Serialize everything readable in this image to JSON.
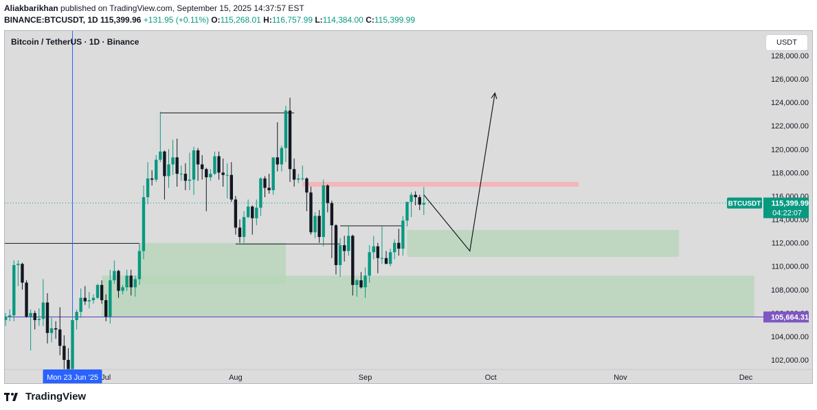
{
  "header": {
    "author": "Aliakbarikhan",
    "published_text": "published on TradingView.com, September 15, 2025 14:37:57 EST",
    "symbol": "BINANCE:BTCUSDT, 1D",
    "last": "115,399.96",
    "change": "+131.95 (+0.11%)",
    "o_label": "O:",
    "o_value": "115,268.01",
    "h_label": "H:",
    "h_value": "116,757.99",
    "l_label": "L:",
    "l_value": "114,384.00",
    "c_label": "C:",
    "c_value": "115,399.99"
  },
  "chart_title": "Bitcoin / TetherUS · 1D · Binance",
  "currency": "USDT",
  "footer": {
    "brand": "TradingView"
  },
  "colors": {
    "up": "#089981",
    "down": "#131722",
    "background": "#dcdcdc",
    "zone": "#b5d6b7",
    "resistance": "#f4b6b8",
    "crosshair": "#2962ff",
    "level_line": "#5b3cc4",
    "level_label": "#7e57c2"
  },
  "chart_data": {
    "type": "candlestick",
    "symbol_label": "BTCUSDT",
    "last_price": 115399.99,
    "last_price_label": "115,399.99",
    "countdown": "04:22:07",
    "level_price": 105664.31,
    "level_label": "105,664.31",
    "crosshair_label": "Mon 23 Jun '25",
    "y_ticks": [
      102000,
      104000,
      106000,
      108000,
      110000,
      112000,
      114000,
      116000,
      118000,
      120000,
      122000,
      124000,
      126000,
      128000
    ],
    "y_tick_labels": [
      "102,000.00",
      "104,000.00",
      "106,000.00",
      "108,000.00",
      "110,000.00",
      "112,000.00",
      "114,000.00",
      "116,000.00",
      "118,000.00",
      "120,000.00",
      "122,000.00",
      "124,000.00",
      "126,000.00",
      "128,000.00"
    ],
    "x_labels": [
      {
        "date": "2025-07-01",
        "label": "Jul"
      },
      {
        "date": "2025-08-01",
        "label": "Aug"
      },
      {
        "date": "2025-09-01",
        "label": "Sep"
      },
      {
        "date": "2025-10-01",
        "label": "Oct"
      },
      {
        "date": "2025-11-01",
        "label": "Nov"
      },
      {
        "date": "2025-12-01",
        "label": "Dec"
      }
    ],
    "candles": [
      [
        "2025-06-06",
        104300,
        105500,
        103700,
        105400
      ],
      [
        "2025-06-07",
        105400,
        106000,
        104900,
        105700
      ],
      [
        "2025-06-08",
        105700,
        106300,
        105300,
        105800
      ],
      [
        "2025-06-09",
        105800,
        110500,
        105300,
        110100
      ],
      [
        "2025-06-10",
        110100,
        110500,
        108300,
        110200
      ],
      [
        "2025-06-11",
        110200,
        110300,
        108000,
        108600
      ],
      [
        "2025-06-12",
        108600,
        108800,
        105600,
        105700
      ],
      [
        "2025-06-13",
        105700,
        106300,
        102800,
        106000
      ],
      [
        "2025-06-14",
        106000,
        106200,
        104600,
        105400
      ],
      [
        "2025-06-15",
        105400,
        106400,
        104900,
        105500
      ],
      [
        "2025-06-16",
        105500,
        108900,
        104900,
        106900
      ],
      [
        "2025-06-17",
        106900,
        107700,
        103400,
        104300
      ],
      [
        "2025-06-18",
        104300,
        105600,
        103500,
        104700
      ],
      [
        "2025-06-19",
        104700,
        105300,
        103800,
        104600
      ],
      [
        "2025-06-20",
        104600,
        106500,
        102400,
        103200
      ],
      [
        "2025-06-21",
        103200,
        104100,
        100800,
        102000
      ],
      [
        "2025-06-22",
        102000,
        103000,
        98200,
        100900
      ],
      [
        "2025-06-23",
        100900,
        106000,
        99700,
        105400
      ],
      [
        "2025-06-24",
        105400,
        106300,
        104600,
        106100
      ],
      [
        "2025-06-25",
        106100,
        108100,
        105600,
        107300
      ],
      [
        "2025-06-26",
        107300,
        108300,
        106700,
        107000
      ],
      [
        "2025-06-27",
        107000,
        107800,
        106400,
        107100
      ],
      [
        "2025-06-28",
        107100,
        107600,
        106800,
        107300
      ],
      [
        "2025-06-29",
        107300,
        108500,
        107200,
        108400
      ],
      [
        "2025-06-30",
        108400,
        108800,
        106800,
        107100
      ],
      [
        "2025-07-01",
        107100,
        107600,
        105300,
        105700
      ],
      [
        "2025-07-02",
        105700,
        109700,
        105100,
        108800
      ],
      [
        "2025-07-03",
        108800,
        110500,
        108500,
        109600
      ],
      [
        "2025-07-04",
        109600,
        109700,
        107300,
        107900
      ],
      [
        "2025-07-05",
        107900,
        108400,
        107600,
        108200
      ],
      [
        "2025-07-06",
        108200,
        109700,
        107900,
        109200
      ],
      [
        "2025-07-07",
        109200,
        109700,
        107500,
        108200
      ],
      [
        "2025-07-08",
        108200,
        109200,
        107400,
        108900
      ],
      [
        "2025-07-09",
        108900,
        111900,
        108400,
        111300
      ],
      [
        "2025-07-10",
        111300,
        116900,
        110600,
        115900
      ],
      [
        "2025-07-11",
        115900,
        118900,
        115300,
        117500
      ],
      [
        "2025-07-12",
        117500,
        118200,
        116900,
        117400
      ],
      [
        "2025-07-13",
        117400,
        119500,
        117200,
        119100
      ],
      [
        "2025-07-14",
        119100,
        123200,
        118900,
        119800
      ],
      [
        "2025-07-15",
        119800,
        119900,
        115700,
        117700
      ],
      [
        "2025-07-16",
        117700,
        120000,
        116700,
        118700
      ],
      [
        "2025-07-17",
        118700,
        120800,
        117800,
        119300
      ],
      [
        "2025-07-18",
        119300,
        120900,
        116800,
        117900
      ],
      [
        "2025-07-19",
        117900,
        118600,
        117300,
        117900
      ],
      [
        "2025-07-20",
        117900,
        118800,
        116500,
        117300
      ],
      [
        "2025-07-21",
        117300,
        119700,
        116500,
        117400
      ],
      [
        "2025-07-22",
        117400,
        120200,
        116100,
        119900
      ],
      [
        "2025-07-23",
        119900,
        120100,
        117300,
        118700
      ],
      [
        "2025-07-24",
        118700,
        119500,
        117400,
        118300
      ],
      [
        "2025-07-25",
        118300,
        118400,
        114700,
        117600
      ],
      [
        "2025-07-26",
        117600,
        118300,
        117300,
        117900
      ],
      [
        "2025-07-27",
        117900,
        119800,
        117800,
        119400
      ],
      [
        "2025-07-28",
        119400,
        119800,
        117400,
        118000
      ],
      [
        "2025-07-29",
        118000,
        119200,
        116800,
        117800
      ],
      [
        "2025-07-30",
        117800,
        118800,
        115800,
        117800
      ],
      [
        "2025-07-31",
        117800,
        118900,
        115500,
        115700
      ],
      [
        "2025-08-01",
        115700,
        116000,
        112700,
        113300
      ],
      [
        "2025-08-02",
        113300,
        114000,
        112000,
        112500
      ],
      [
        "2025-08-03",
        112500,
        114700,
        112000,
        114200
      ],
      [
        "2025-08-04",
        114200,
        115700,
        114100,
        115100
      ],
      [
        "2025-08-05",
        115100,
        115200,
        112700,
        114100
      ],
      [
        "2025-08-06",
        114100,
        115700,
        113500,
        115000
      ],
      [
        "2025-08-07",
        115000,
        117600,
        114300,
        117500
      ],
      [
        "2025-08-08",
        117500,
        117700,
        115900,
        116700
      ],
      [
        "2025-08-09",
        116700,
        117900,
        116200,
        116500
      ],
      [
        "2025-08-10",
        116500,
        119300,
        116100,
        119300
      ],
      [
        "2025-08-11",
        119300,
        122300,
        118100,
        118700
      ],
      [
        "2025-08-12",
        118700,
        120300,
        118100,
        120100
      ],
      [
        "2025-08-13",
        120100,
        123700,
        118900,
        123300
      ],
      [
        "2025-08-14",
        123300,
        124400,
        117200,
        118300
      ],
      [
        "2025-08-15",
        118300,
        119200,
        116800,
        117400
      ],
      [
        "2025-08-16",
        117400,
        117900,
        117100,
        117500
      ],
      [
        "2025-08-17",
        117500,
        118600,
        117300,
        117500
      ],
      [
        "2025-08-18",
        117500,
        117600,
        114700,
        116300
      ],
      [
        "2025-08-19",
        116300,
        116800,
        112700,
        112900
      ],
      [
        "2025-08-20",
        112900,
        114600,
        112400,
        114300
      ],
      [
        "2025-08-21",
        114300,
        114800,
        112000,
        112500
      ],
      [
        "2025-08-22",
        112500,
        117400,
        111700,
        116900
      ],
      [
        "2025-08-23",
        116900,
        117000,
        114600,
        115400
      ],
      [
        "2025-08-24",
        115400,
        115600,
        110700,
        113500
      ],
      [
        "2025-08-25",
        113500,
        113600,
        109300,
        110100
      ],
      [
        "2025-08-26",
        110100,
        112400,
        109100,
        111800
      ],
      [
        "2025-08-27",
        111800,
        112600,
        110400,
        111300
      ],
      [
        "2025-08-28",
        111300,
        113500,
        110900,
        112600
      ],
      [
        "2025-08-29",
        112600,
        112700,
        107500,
        108400
      ],
      [
        "2025-08-30",
        108400,
        108900,
        107400,
        108800
      ],
      [
        "2025-08-31",
        108800,
        109500,
        108100,
        108200
      ],
      [
        "2025-09-01",
        108200,
        109900,
        107300,
        109200
      ],
      [
        "2025-09-02",
        109200,
        111800,
        108600,
        111200
      ],
      [
        "2025-09-03",
        111200,
        112600,
        110600,
        111700
      ],
      [
        "2025-09-04",
        111700,
        112000,
        109400,
        110700
      ],
      [
        "2025-09-05",
        110700,
        113400,
        110200,
        110700
      ],
      [
        "2025-09-06",
        110700,
        111300,
        110200,
        110200
      ],
      [
        "2025-09-07",
        110200,
        111500,
        110000,
        111200
      ],
      [
        "2025-09-08",
        111200,
        112300,
        110600,
        112000
      ],
      [
        "2025-09-09",
        112000,
        113200,
        110900,
        111500
      ],
      [
        "2025-09-10",
        111500,
        114300,
        110900,
        113900
      ],
      [
        "2025-09-11",
        113900,
        115500,
        113400,
        115500
      ],
      [
        "2025-09-12",
        115500,
        116300,
        114200,
        116100
      ],
      [
        "2025-09-13",
        116100,
        116400,
        115200,
        115900
      ],
      [
        "2025-09-14",
        115900,
        116100,
        114800,
        115268
      ],
      [
        "2025-09-15",
        115268,
        116758,
        114384,
        115400
      ]
    ],
    "zones": [
      {
        "from": "2025-06-30",
        "to": "2025-12-03",
        "top": 109200,
        "bottom": 105700
      },
      {
        "from": "2025-07-09",
        "to": "2025-08-13",
        "top": 112000,
        "bottom": 108500
      },
      {
        "from": "2025-09-11",
        "to": "2025-11-15",
        "top": 113100,
        "bottom": 110800
      }
    ],
    "resistance_band": {
      "from": "2025-08-17",
      "to": "2025-10-22",
      "top": 117200,
      "bottom": 116800
    },
    "lines": [
      {
        "from": "2025-05-26",
        "to": "2025-07-09",
        "price": 111950
      },
      {
        "from": "2025-07-14",
        "to": "2025-08-15",
        "price": 123100
      },
      {
        "from": "2025-08-01",
        "to": "2025-08-26",
        "price": 111900
      },
      {
        "from": "2025-08-26",
        "to": "2025-09-10",
        "price": 113450
      }
    ],
    "projection": [
      [
        "2025-09-15",
        116100
      ],
      [
        "2025-09-26",
        111300
      ],
      [
        "2025-10-02",
        124800
      ]
    ]
  }
}
